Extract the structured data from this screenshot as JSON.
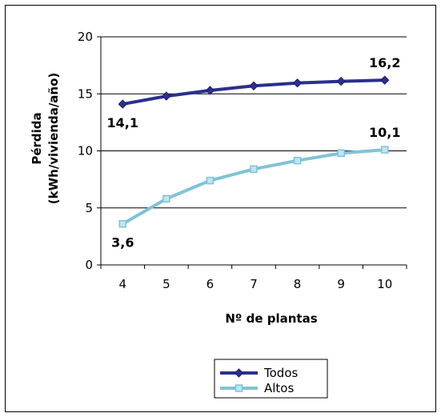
{
  "chart_data": {
    "type": "line",
    "title": "",
    "categories": [
      "4",
      "5",
      "6",
      "7",
      "8",
      "9",
      "10"
    ],
    "x": [
      4,
      5,
      6,
      7,
      8,
      9,
      10
    ],
    "xlabel": "Nº de plantas",
    "ylabel_lines": [
      "Pérdida",
      "(kWh/vivienda/año)"
    ],
    "ylim": [
      0,
      20
    ],
    "yticks": [
      0,
      5,
      10,
      15,
      20
    ],
    "grid": "horizontal",
    "legend": "bottom",
    "series": [
      {
        "name": "Todos",
        "color": "#2b2f8f",
        "marker": "diamond",
        "values": [
          14.1,
          14.8,
          15.3,
          15.7,
          15.95,
          16.1,
          16.2
        ]
      },
      {
        "name": "Altos",
        "color": "#7fc3d6",
        "marker": "square",
        "values": [
          3.6,
          5.8,
          7.4,
          8.4,
          9.15,
          9.8,
          10.1
        ]
      }
    ],
    "data_labels": [
      {
        "series": 0,
        "index": 0,
        "text": "14,1"
      },
      {
        "series": 0,
        "index": 6,
        "text": "16,2"
      },
      {
        "series": 1,
        "index": 0,
        "text": "3,6"
      },
      {
        "series": 1,
        "index": 6,
        "text": "10,1"
      }
    ]
  }
}
